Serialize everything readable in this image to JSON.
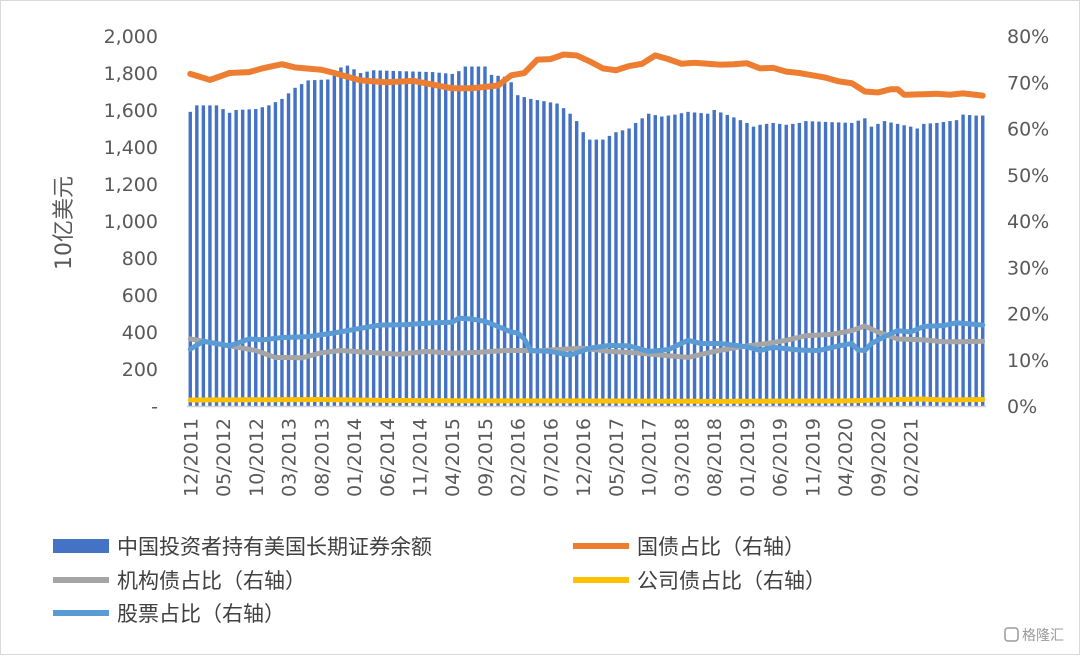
{
  "chart_data": {
    "type": "bar+line",
    "ylabel": "10亿美元",
    "left_axis": {
      "ylim": [
        0,
        2000
      ],
      "ticks": [
        "-",
        "200",
        "400",
        "600",
        "800",
        "1,000",
        "1,200",
        "1,400",
        "1,600",
        "1,800",
        "2,000"
      ]
    },
    "right_axis": {
      "ylim": [
        0,
        80
      ],
      "ticks": [
        "0%",
        "10%",
        "20%",
        "30%",
        "40%",
        "50%",
        "60%",
        "70%",
        "80%"
      ]
    },
    "x_ticks": [
      "12/2011",
      "05/2012",
      "10/2012",
      "03/2013",
      "08/2013",
      "01/2014",
      "06/2014",
      "11/2014",
      "04/2015",
      "09/2015",
      "02/2016",
      "07/2016",
      "12/2016",
      "05/2017",
      "10/2017",
      "03/2018",
      "08/2018",
      "01/2019",
      "06/2019",
      "11/2019",
      "04/2020",
      "09/2020",
      "02/2021"
    ],
    "x_start": "12/2011",
    "x_end": "06/2021",
    "grid": false,
    "legend_position": "bottom",
    "bar_series": {
      "name": "中国投资者持有美国长期证券余额",
      "color": "#4472c4",
      "keyframes": [
        [
          0,
          1590
        ],
        [
          1,
          1625
        ],
        [
          4,
          1625
        ],
        [
          6,
          1585
        ],
        [
          7,
          1600
        ],
        [
          10,
          1605
        ],
        [
          12,
          1625
        ],
        [
          14,
          1660
        ],
        [
          16,
          1720
        ],
        [
          18,
          1760
        ],
        [
          21,
          1765
        ],
        [
          23,
          1830
        ],
        [
          24,
          1840
        ],
        [
          26,
          1800
        ],
        [
          28,
          1815
        ],
        [
          32,
          1810
        ],
        [
          37,
          1805
        ],
        [
          40,
          1795
        ],
        [
          41,
          1810
        ],
        [
          42,
          1835
        ],
        [
          45,
          1835
        ],
        [
          46,
          1790
        ],
        [
          48,
          1780
        ],
        [
          49,
          1750
        ],
        [
          50,
          1680
        ],
        [
          52,
          1660
        ],
        [
          56,
          1635
        ],
        [
          57,
          1610
        ],
        [
          58,
          1580
        ],
        [
          59,
          1540
        ],
        [
          60,
          1480
        ],
        [
          61,
          1440
        ],
        [
          63,
          1440
        ],
        [
          64,
          1460
        ],
        [
          65,
          1480
        ],
        [
          66,
          1490
        ],
        [
          67,
          1500
        ],
        [
          68,
          1530
        ],
        [
          70,
          1580
        ],
        [
          72,
          1565
        ],
        [
          74,
          1575
        ],
        [
          76,
          1590
        ],
        [
          79,
          1580
        ],
        [
          80,
          1600
        ],
        [
          83,
          1560
        ],
        [
          85,
          1530
        ],
        [
          86,
          1510
        ],
        [
          87,
          1520
        ],
        [
          89,
          1530
        ],
        [
          91,
          1520
        ],
        [
          93,
          1530
        ],
        [
          94,
          1540
        ],
        [
          101,
          1530
        ],
        [
          103,
          1555
        ],
        [
          104,
          1510
        ],
        [
          106,
          1540
        ],
        [
          110,
          1510
        ],
        [
          111,
          1500
        ],
        [
          112,
          1525
        ],
        [
          114,
          1530
        ],
        [
          117,
          1545
        ],
        [
          118,
          1575
        ],
        [
          120,
          1570
        ],
        [
          121,
          1570
        ]
      ]
    },
    "series": [
      {
        "name": "国债占比（右轴）",
        "color": "#ed7d31",
        "width": 6,
        "keyframes": [
          [
            0,
            71.8
          ],
          [
            3,
            70.5
          ],
          [
            6,
            72
          ],
          [
            9,
            72.2
          ],
          [
            11,
            73
          ],
          [
            14,
            73.9
          ],
          [
            16,
            73.2
          ],
          [
            20,
            72.7
          ],
          [
            22,
            72
          ],
          [
            26,
            70.4
          ],
          [
            30,
            70
          ],
          [
            34,
            70.3
          ],
          [
            37,
            69.5
          ],
          [
            40,
            68.7
          ],
          [
            43,
            68.7
          ],
          [
            47,
            69.3
          ],
          [
            49,
            71.5
          ],
          [
            51,
            72
          ],
          [
            53,
            74.9
          ],
          [
            55,
            75
          ],
          [
            57,
            76
          ],
          [
            59,
            75.8
          ],
          [
            61,
            74.5
          ],
          [
            63,
            73
          ],
          [
            65,
            72.6
          ],
          [
            67,
            73.5
          ],
          [
            69,
            74
          ],
          [
            71,
            75.8
          ],
          [
            73,
            75
          ],
          [
            75,
            74
          ],
          [
            77,
            74.2
          ],
          [
            79,
            74
          ],
          [
            81,
            73.8
          ],
          [
            83,
            73.9
          ],
          [
            85,
            74.1
          ],
          [
            87,
            73
          ],
          [
            89,
            73.1
          ],
          [
            91,
            72.3
          ],
          [
            93,
            72
          ],
          [
            95,
            71.5
          ],
          [
            97,
            71
          ],
          [
            99,
            70.2
          ],
          [
            101,
            69.8
          ],
          [
            103,
            68
          ],
          [
            105,
            67.8
          ],
          [
            107,
            68.5
          ],
          [
            108,
            68.5
          ],
          [
            109,
            67.3
          ],
          [
            112,
            67.4
          ],
          [
            114,
            67.5
          ],
          [
            116,
            67.3
          ],
          [
            118,
            67.6
          ],
          [
            121,
            67.1
          ]
        ]
      },
      {
        "name": "机构债占比（右轴）",
        "color": "#a5a5a5",
        "width": 5,
        "keyframes": [
          [
            0,
            14.5
          ],
          [
            4,
            13.5
          ],
          [
            8,
            12.5
          ],
          [
            10,
            12
          ],
          [
            13,
            10.5
          ],
          [
            15,
            10.5
          ],
          [
            17,
            10.4
          ],
          [
            20,
            11.5
          ],
          [
            23,
            12
          ],
          [
            27,
            11.6
          ],
          [
            32,
            11.2
          ],
          [
            36,
            11.8
          ],
          [
            40,
            11.4
          ],
          [
            44,
            11.6
          ],
          [
            48,
            12
          ],
          [
            51,
            12
          ],
          [
            53,
            11.9
          ],
          [
            56,
            12.2
          ],
          [
            60,
            12.5
          ],
          [
            64,
            11.8
          ],
          [
            68,
            11.5
          ],
          [
            72,
            11
          ],
          [
            76,
            10.5
          ],
          [
            80,
            11.8
          ],
          [
            84,
            12.8
          ],
          [
            88,
            13.5
          ],
          [
            91,
            14.2
          ],
          [
            94,
            15.2
          ],
          [
            98,
            15.5
          ],
          [
            101,
            16.3
          ],
          [
            103,
            17.3
          ],
          [
            105,
            16
          ],
          [
            108,
            14.5
          ],
          [
            112,
            14.3
          ],
          [
            115,
            13.9
          ],
          [
            118,
            13.9
          ],
          [
            121,
            14
          ]
        ]
      },
      {
        "name": "公司债占比（右轴）",
        "color": "#ffc000",
        "width": 5,
        "keyframes": [
          [
            0,
            1.3
          ],
          [
            20,
            1.4
          ],
          [
            30,
            1.2
          ],
          [
            44,
            1.1
          ],
          [
            60,
            1.1
          ],
          [
            80,
            1.0
          ],
          [
            100,
            1.1
          ],
          [
            108,
            1.4
          ],
          [
            112,
            1.5
          ],
          [
            115,
            1.3
          ],
          [
            121,
            1.4
          ]
        ]
      },
      {
        "name": "股票占比（右轴）",
        "color": "#5b9bd5",
        "width": 5,
        "keyframes": [
          [
            0,
            12.3
          ],
          [
            2,
            14
          ],
          [
            4,
            13.5
          ],
          [
            6,
            13
          ],
          [
            9,
            14.5
          ],
          [
            11,
            14.3
          ],
          [
            14,
            14.8
          ],
          [
            18,
            15
          ],
          [
            22,
            15.8
          ],
          [
            26,
            16.8
          ],
          [
            29,
            17.5
          ],
          [
            33,
            17.6
          ],
          [
            37,
            18
          ],
          [
            40,
            18.1
          ],
          [
            41,
            19
          ],
          [
            43,
            18.8
          ],
          [
            45,
            18.3
          ],
          [
            47,
            17.2
          ],
          [
            49,
            16
          ],
          [
            50,
            15.8
          ],
          [
            51,
            14.5
          ],
          [
            52,
            12
          ],
          [
            55,
            11.8
          ],
          [
            58,
            11
          ],
          [
            61,
            12.5
          ],
          [
            64,
            13.1
          ],
          [
            67,
            13
          ],
          [
            70,
            11.8
          ],
          [
            73,
            12.2
          ],
          [
            76,
            14.2
          ],
          [
            78,
            13.5
          ],
          [
            81,
            13.5
          ],
          [
            85,
            12.8
          ],
          [
            87,
            12
          ],
          [
            89,
            12.7
          ],
          [
            91,
            12.4
          ],
          [
            93,
            12.1
          ],
          [
            96,
            12
          ],
          [
            99,
            13
          ],
          [
            101,
            13.5
          ],
          [
            102,
            12.1
          ],
          [
            103,
            12
          ],
          [
            104,
            13.5
          ],
          [
            106,
            15
          ],
          [
            108,
            16.3
          ],
          [
            110,
            16
          ],
          [
            112,
            17.2
          ],
          [
            115,
            17.4
          ],
          [
            117,
            18
          ],
          [
            121,
            17.5
          ]
        ]
      }
    ]
  },
  "watermark": "格隆汇"
}
